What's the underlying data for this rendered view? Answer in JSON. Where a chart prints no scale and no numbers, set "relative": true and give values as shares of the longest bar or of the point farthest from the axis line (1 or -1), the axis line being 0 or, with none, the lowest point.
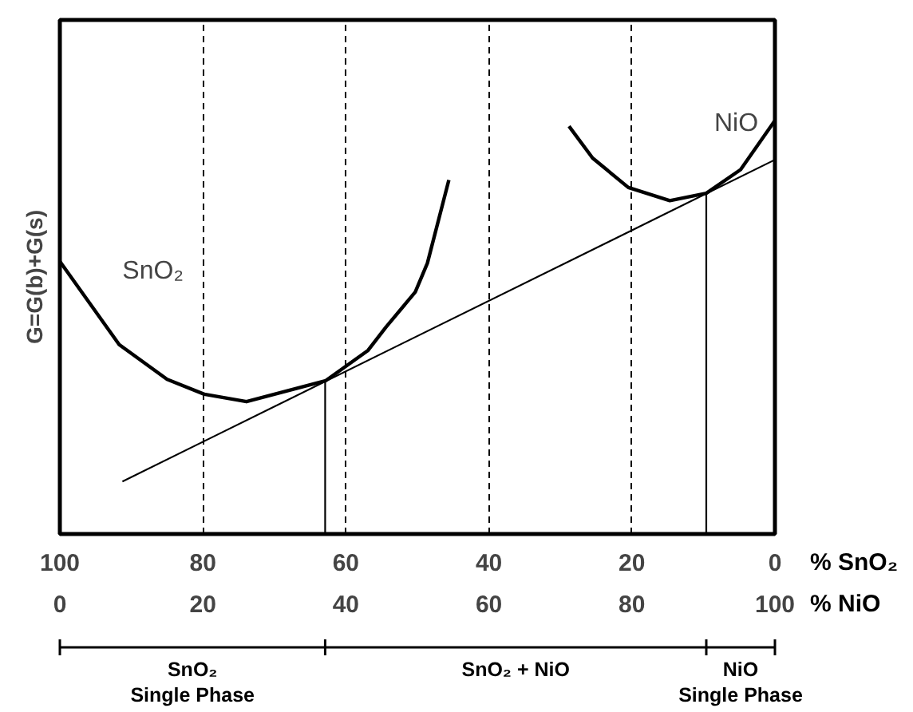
{
  "chart_data": {
    "type": "line",
    "relative": true,
    "ylabel": "G=G(b)+G(s)",
    "xlabel": "% NiO",
    "x2label": "% SnO₂",
    "xlim": [
      0,
      100
    ],
    "xticks": [
      0,
      20,
      40,
      60,
      80,
      100
    ],
    "x2lim": [
      100,
      0
    ],
    "x2ticks": [
      100,
      80,
      60,
      40,
      20,
      0
    ],
    "grid": "x",
    "marker": "none",
    "series": [
      {
        "name": "SnO₂",
        "color": "#000000",
        "x": [
          0,
          8.3,
          15.0,
          20.2,
          26.1,
          37.2,
          43.1,
          45.6,
          49.7,
          51.4,
          54.4
        ],
        "values": [
          0.659,
          0.458,
          0.374,
          0.338,
          0.32,
          0.371,
          0.444,
          0.5,
          0.585,
          0.655,
          0.856
        ]
      },
      {
        "name": "NiO",
        "color": "#000000",
        "x": [
          71.2,
          74.5,
          79.5,
          85.3,
          90.4,
          95.2,
          100
        ],
        "values": [
          0.986,
          0.909,
          0.838,
          0.806,
          0.824,
          0.881,
          1.0
        ]
      },
      {
        "color": "#000000",
        "x": [
          8.75,
          100
        ],
        "values": [
          0.127,
          0.905
        ]
      },
      {
        "color": "#000000",
        "x": [
          37.1,
          37.1
        ],
        "values": [
          0,
          0.371
        ]
      },
      {
        "color": "#000000",
        "x": [
          90.4,
          90.4
        ],
        "values": [
          0,
          0.824
        ]
      }
    ],
    "annotations": [
      "SnO₂\nSingle Phase",
      "SnO₂ + NiO",
      "NiO\nSingle Phase"
    ]
  }
}
